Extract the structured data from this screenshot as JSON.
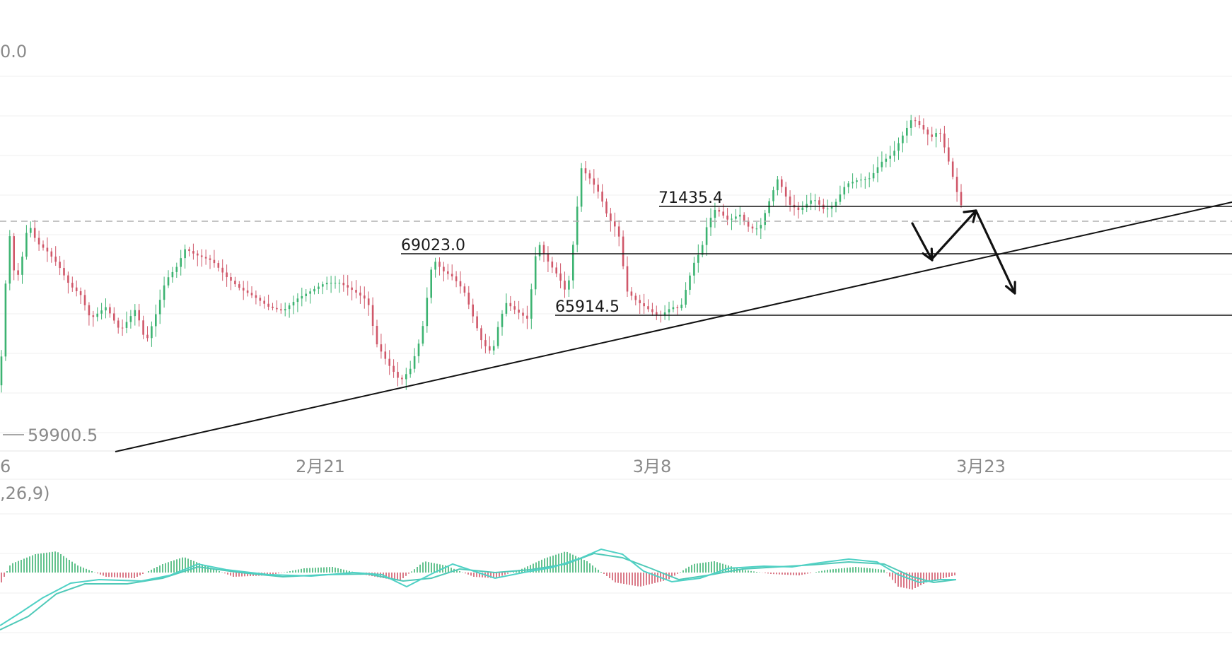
{
  "chart_data": [
    {
      "type": "candlestick",
      "title": "",
      "y_top_label": "0.0",
      "y_min_label": "59900.5",
      "x_ticks": [
        "6",
        "2月21",
        "3月8",
        "3月23"
      ],
      "price_levels": [
        {
          "label": "71435.4",
          "value": 71435.4
        },
        {
          "label": "69023.0",
          "value": 69023.0
        },
        {
          "label": "65914.5",
          "value": 65914.5
        }
      ],
      "current_price_line": "dashed",
      "trendline": {
        "from": {
          "date": "2月9",
          "price": 59900.5
        },
        "to": {
          "date": "4月7",
          "price": 71900
        }
      },
      "projection_arrows": "down-up-down",
      "colors": {
        "up": "#3cb371",
        "down": "#d0586a",
        "lines": "#111111",
        "grid": "#efefef",
        "axis_text": "#8a8a8a"
      },
      "grid": true,
      "legend": "none"
    },
    {
      "type": "macd",
      "params_label": ",26,9)",
      "colors": {
        "dif": "#4fd1c5",
        "dea": "#4fc9b8",
        "hist_up": "#3cb371",
        "hist_down": "#d0586a"
      }
    }
  ]
}
